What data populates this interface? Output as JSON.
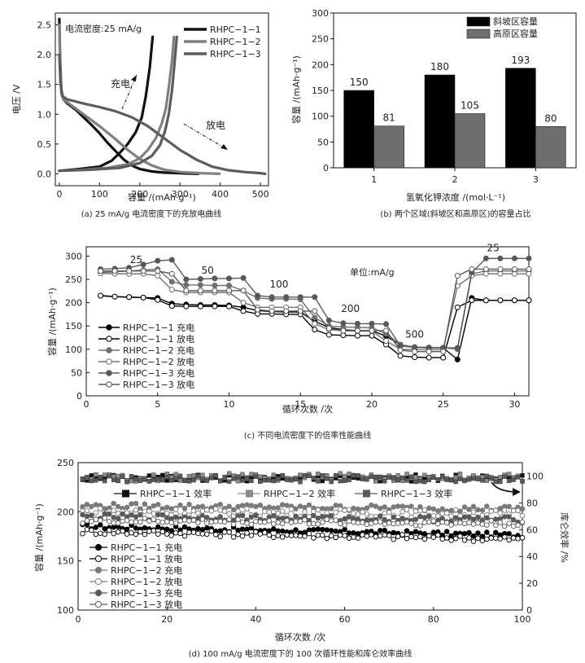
{
  "chart_data": [
    {
      "panel": "a",
      "type": "line",
      "caption": "(a) 25 mA/g 电流密度下的充放电曲线",
      "annotation": "电流密度:25 mA/g",
      "charge_label": "充电",
      "discharge_label": "放电",
      "xlabel": "容量 /(mAh·g⁻¹)",
      "ylabel": "电压 /V",
      "xlim": [
        -10,
        520
      ],
      "ylim": [
        -0.2,
        2.7
      ],
      "xticks": [
        0,
        100,
        200,
        300,
        400,
        500
      ],
      "xtick_labels": [
        "0",
        "100",
        "200",
        "300",
        "400",
        "500"
      ],
      "yticks": [
        0,
        0.5,
        1.0,
        1.5,
        2.0,
        2.5
      ],
      "ytick_labels": [
        "0.0",
        "0.5",
        "1.0",
        "1.5",
        "2.0",
        "2.5"
      ],
      "legend_position": "top-right",
      "series": [
        {
          "name": "RHPC−1−1",
          "color": "#111111",
          "discharge": [
            [
              0,
              2.6
            ],
            [
              2,
              1.9
            ],
            [
              5,
              1.4
            ],
            [
              10,
              1.25
            ],
            [
              20,
              1.18
            ],
            [
              40,
              1.08
            ],
            [
              60,
              0.95
            ],
            [
              80,
              0.82
            ],
            [
              100,
              0.68
            ],
            [
              120,
              0.52
            ],
            [
              140,
              0.38
            ],
            [
              160,
              0.24
            ],
            [
              180,
              0.14
            ],
            [
              200,
              0.08
            ],
            [
              230,
              0.04
            ],
            [
              260,
              0.02
            ],
            [
              300,
              0.01
            ],
            [
              345,
              0.0
            ]
          ],
          "charge": [
            [
              0,
              0.05
            ],
            [
              50,
              0.08
            ],
            [
              100,
              0.12
            ],
            [
              130,
              0.22
            ],
            [
              150,
              0.35
            ],
            [
              170,
              0.5
            ],
            [
              190,
              0.7
            ],
            [
              205,
              0.95
            ],
            [
              215,
              1.3
            ],
            [
              225,
              1.8
            ],
            [
              232,
              2.3
            ]
          ]
        },
        {
          "name": "RHPC−1−2",
          "color": "#808080",
          "discharge": [
            [
              0,
              2.5
            ],
            [
              2,
              1.8
            ],
            [
              5,
              1.35
            ],
            [
              10,
              1.25
            ],
            [
              30,
              1.15
            ],
            [
              60,
              1.0
            ],
            [
              100,
              0.8
            ],
            [
              140,
              0.58
            ],
            [
              170,
              0.4
            ],
            [
              200,
              0.25
            ],
            [
              230,
              0.14
            ],
            [
              260,
              0.07
            ],
            [
              300,
              0.03
            ],
            [
              350,
              0.01
            ],
            [
              398,
              0.0
            ]
          ],
          "charge": [
            [
              0,
              0.05
            ],
            [
              60,
              0.07
            ],
            [
              120,
              0.1
            ],
            [
              170,
              0.16
            ],
            [
              200,
              0.26
            ],
            [
              220,
              0.4
            ],
            [
              240,
              0.6
            ],
            [
              255,
              0.85
            ],
            [
              265,
              1.1
            ],
            [
              273,
              1.5
            ],
            [
              280,
              1.9
            ],
            [
              285,
              2.3
            ]
          ]
        },
        {
          "name": "RHPC−1−3",
          "color": "#5c5c5c",
          "discharge": [
            [
              0,
              2.0
            ],
            [
              3,
              1.5
            ],
            [
              8,
              1.3
            ],
            [
              20,
              1.25
            ],
            [
              60,
              1.18
            ],
            [
              100,
              1.12
            ],
            [
              140,
              1.05
            ],
            [
              180,
              0.95
            ],
            [
              220,
              0.8
            ],
            [
              260,
              0.6
            ],
            [
              300,
              0.4
            ],
            [
              340,
              0.24
            ],
            [
              380,
              0.12
            ],
            [
              420,
              0.06
            ],
            [
              460,
              0.03
            ],
            [
              500,
              0.01
            ],
            [
              512,
              0.0
            ]
          ],
          "charge": [
            [
              0,
              0.05
            ],
            [
              80,
              0.07
            ],
            [
              150,
              0.1
            ],
            [
              200,
              0.18
            ],
            [
              230,
              0.3
            ],
            [
              250,
              0.48
            ],
            [
              262,
              0.7
            ],
            [
              272,
              1.0
            ],
            [
              280,
              1.4
            ],
            [
              287,
              1.9
            ],
            [
              292,
              2.3
            ]
          ]
        }
      ]
    },
    {
      "panel": "b",
      "type": "bar",
      "caption": "(b) 两个区域(斜坡区和高原区)的容量占比",
      "categories": [
        "1",
        "2",
        "3"
      ],
      "xlabel": "氢氧化钾浓度 /(mol·L⁻¹)",
      "ylabel": "容量 /(mAh·g⁻¹)",
      "ylim": [
        0,
        300
      ],
      "yticks": [
        0,
        50,
        100,
        150,
        200,
        250,
        300
      ],
      "legend_position": "top-right",
      "series": [
        {
          "name": "斜坡区容量",
          "color": "#000000",
          "values": [
            150,
            180,
            193
          ]
        },
        {
          "name": "高原区容量",
          "color": "#6e6e6e",
          "values": [
            81,
            105,
            80
          ]
        }
      ]
    },
    {
      "panel": "c",
      "type": "line",
      "caption": "(c) 不同电流密度下的倍率性能曲线",
      "xlabel": "循环次数 /次",
      "ylabel": "容量 /(mAh·g⁻¹)",
      "unit_note": "单位:mA/g",
      "xlim": [
        0,
        31
      ],
      "ylim": [
        0,
        320
      ],
      "xticks": [
        0,
        5,
        10,
        15,
        20,
        25,
        30
      ],
      "yticks": [
        0,
        50,
        100,
        150,
        200,
        250,
        300
      ],
      "rate_labels": [
        {
          "text": "25",
          "x": 3.5,
          "y": 285
        },
        {
          "text": "50",
          "x": 8.5,
          "y": 262
        },
        {
          "text": "100",
          "x": 13.5,
          "y": 233
        },
        {
          "text": "200",
          "x": 18.5,
          "y": 180
        },
        {
          "text": "500",
          "x": 23.0,
          "y": 125
        },
        {
          "text": "25",
          "x": 28.5,
          "y": 310
        }
      ],
      "legend_position": "left-bottom",
      "series": [
        {
          "name": "RHPC−1−1 充电",
          "marker": "filled",
          "color": "#000000",
          "x": [
            1,
            2,
            3,
            4,
            5,
            6,
            7,
            8,
            9,
            10,
            11,
            12,
            13,
            14,
            15,
            16,
            17,
            18,
            19,
            20,
            21,
            22,
            23,
            24,
            25,
            26,
            27,
            28,
            29,
            30,
            31
          ],
          "values": [
            215,
            213,
            212,
            211,
            210,
            198,
            196,
            195,
            195,
            194,
            190,
            183,
            181,
            180,
            180,
            160,
            147,
            142,
            140,
            140,
            128,
            110,
            104,
            103,
            103,
            78,
            210,
            205,
            205,
            205,
            205
          ]
        },
        {
          "name": "RHPC−1−1 放电",
          "marker": "open",
          "color": "#000000",
          "x": [
            1,
            2,
            3,
            4,
            5,
            6,
            7,
            8,
            9,
            10,
            11,
            12,
            13,
            14,
            15,
            16,
            17,
            18,
            19,
            20,
            21,
            22,
            23,
            24,
            25,
            26,
            27,
            28,
            29,
            30,
            31
          ],
          "values": [
            215,
            213,
            212,
            211,
            206,
            193,
            192,
            192,
            192,
            192,
            182,
            176,
            176,
            175,
            175,
            142,
            131,
            130,
            129,
            129,
            110,
            86,
            83,
            82,
            82,
            190,
            205,
            205,
            205,
            205,
            205
          ]
        },
        {
          "name": "RHPC−1−2 充电",
          "marker": "filled",
          "color": "#707070",
          "x": [
            1,
            2,
            3,
            4,
            5,
            6,
            7,
            8,
            9,
            10,
            11,
            12,
            13,
            14,
            15,
            16,
            17,
            18,
            19,
            20,
            21,
            22,
            23,
            24,
            25,
            26,
            27,
            28,
            29,
            30,
            31
          ],
          "values": [
            265,
            266,
            268,
            270,
            272,
            245,
            238,
            238,
            237,
            237,
            226,
            210,
            208,
            208,
            207,
            168,
            150,
            148,
            147,
            146,
            133,
            110,
            105,
            104,
            103,
            100,
            262,
            268,
            268,
            268,
            268
          ]
        },
        {
          "name": "RHPC−1−2 放电",
          "marker": "open",
          "color": "#707070",
          "x": [
            1,
            2,
            3,
            4,
            5,
            6,
            7,
            8,
            9,
            10,
            11,
            12,
            13,
            14,
            15,
            16,
            17,
            18,
            19,
            20,
            21,
            22,
            23,
            24,
            25,
            26,
            27,
            28,
            29,
            30,
            31
          ],
          "values": [
            263,
            262,
            262,
            262,
            258,
            228,
            222,
            222,
            222,
            222,
            200,
            190,
            190,
            190,
            190,
            155,
            142,
            140,
            139,
            139,
            118,
            100,
            99,
            99,
            99,
            236,
            258,
            262,
            262,
            262,
            262
          ]
        },
        {
          "name": "RHPC−1−3 充电",
          "marker": "filled",
          "color": "#585858",
          "x": [
            1,
            2,
            3,
            4,
            5,
            6,
            7,
            8,
            9,
            10,
            11,
            12,
            13,
            14,
            15,
            16,
            17,
            18,
            19,
            20,
            21,
            22,
            23,
            24,
            25,
            26,
            27,
            28,
            29,
            30,
            31
          ],
          "values": [
            272,
            273,
            275,
            282,
            290,
            292,
            250,
            251,
            252,
            252,
            253,
            215,
            212,
            212,
            212,
            212,
            162,
            156,
            155,
            155,
            154,
            107,
            104,
            103,
            103,
            103,
            265,
            295,
            295,
            295,
            295
          ]
        },
        {
          "name": "RHPC−1−3 放电",
          "marker": "open",
          "color": "#585858",
          "x": [
            1,
            2,
            3,
            4,
            5,
            6,
            7,
            8,
            9,
            10,
            11,
            12,
            13,
            14,
            15,
            16,
            17,
            18,
            19,
            20,
            21,
            22,
            23,
            24,
            25,
            26,
            27,
            28,
            29,
            30,
            31
          ],
          "values": [
            268,
            268,
            268,
            268,
            268,
            262,
            226,
            226,
            226,
            226,
            226,
            185,
            182,
            182,
            182,
            182,
            145,
            140,
            140,
            140,
            140,
            98,
            95,
            95,
            95,
            258,
            272,
            272,
            272,
            272,
            272
          ]
        }
      ]
    },
    {
      "panel": "d",
      "type": "scatter",
      "caption": "(d) 100 mA/g 电流密度下的 100 次循环性能和库仑效率曲线",
      "xlabel": "循环次数 /次",
      "ylabel": "容量 /(mAh·g⁻¹)",
      "y2label": "库仑效率 /%",
      "xlim": [
        0,
        100
      ],
      "ylim": [
        100,
        250
      ],
      "y2lim": [
        0,
        110
      ],
      "xticks": [
        0,
        20,
        40,
        60,
        80,
        100
      ],
      "yticks": [
        100,
        150,
        200,
        250
      ],
      "y2ticks": [
        0,
        20,
        40,
        60,
        80,
        100
      ],
      "legend_position": "top and left-bottom",
      "efficiency_series": [
        {
          "name": "RHPC−1−1 效率",
          "marker": "filled-square",
          "color": "#111111",
          "level": 98.5,
          "spread": 2.5
        },
        {
          "name": "RHPC−1−2 效率",
          "marker": "filled-square",
          "color": "#8a8a8a",
          "level": 99.0,
          "spread": 3.0
        },
        {
          "name": "RHPC−1−3 效率",
          "marker": "filled-square",
          "color": "#5a5a5a",
          "level": 98.0,
          "spread": 2.5
        }
      ],
      "capacity_series": [
        {
          "name": "RHPC−1−1 充电",
          "marker": "filled",
          "color": "#000000",
          "start": 185,
          "end": 176,
          "spread": 2.5
        },
        {
          "name": "RHPC−1−1 放电",
          "marker": "open",
          "color": "#000000",
          "start": 180,
          "end": 172,
          "spread": 3.0
        },
        {
          "name": "RHPC−1−2 充电",
          "marker": "filled",
          "color": "#7a7a7a",
          "start": 206,
          "end": 203,
          "spread": 3.0
        },
        {
          "name": "RHPC−1−2 放电",
          "marker": "open",
          "color": "#7a7a7a",
          "start": 200,
          "end": 198,
          "spread": 4.0
        },
        {
          "name": "RHPC−1−3 充电",
          "marker": "filled",
          "color": "#5a5a5a",
          "start": 195,
          "end": 192,
          "spread": 3.0
        },
        {
          "name": "RHPC−1−3 放电",
          "marker": "open",
          "color": "#5a5a5a",
          "start": 191,
          "end": 188,
          "spread": 3.0
        }
      ]
    }
  ]
}
